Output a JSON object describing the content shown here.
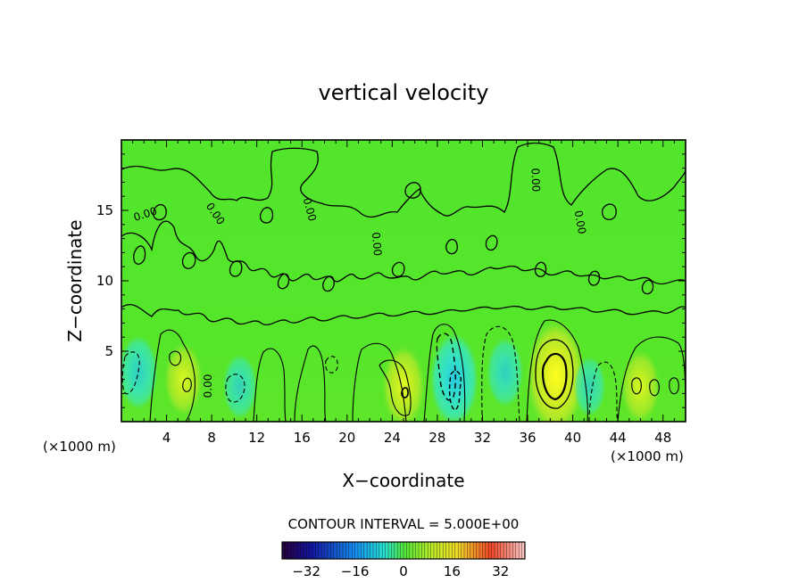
{
  "chart_data": {
    "type": "heatmap",
    "title": "vertical velocity",
    "xlabel": "X−coordinate",
    "ylabel": "Z−coordinate",
    "x_unit_label": "(×1000 m)",
    "z_unit_label": "(×1000 m)",
    "xlim": [
      0,
      50
    ],
    "ylim": [
      0,
      20
    ],
    "x_ticks": [
      4,
      8,
      12,
      16,
      20,
      24,
      28,
      32,
      36,
      40,
      44,
      48
    ],
    "x_tick_labels": [
      "4",
      "8",
      "12",
      "16",
      "20",
      "24",
      "28",
      "32",
      "36",
      "40",
      "44",
      "48"
    ],
    "y_ticks": [
      5,
      10,
      15
    ],
    "y_tick_labels": [
      "5",
      "10",
      "15"
    ],
    "contour_interval_text": "CONTOUR INTERVAL = 5.000E+00",
    "contour_labels": [
      "0.00",
      "0.00",
      "0.00",
      "0.00",
      "0.00",
      "0.00"
    ],
    "colorbar": {
      "range": [
        -40,
        40
      ],
      "ticks": [
        -32,
        -16,
        0,
        16,
        32
      ],
      "tick_labels": [
        "−32",
        "−16",
        "0",
        "16",
        "32"
      ]
    },
    "features": [
      {
        "x": 38.5,
        "z": 3.2,
        "value": 15,
        "sign": "updraft"
      },
      {
        "x": 29.5,
        "z": 3.0,
        "value": -10,
        "sign": "downdraft"
      },
      {
        "x": 5.5,
        "z": 3.0,
        "value": 6,
        "sign": "updraft"
      },
      {
        "x": 25.0,
        "z": 2.5,
        "value": 8,
        "sign": "updraft"
      },
      {
        "x": 46.0,
        "z": 2.5,
        "value": 6,
        "sign": "updraft"
      },
      {
        "x": 1.5,
        "z": 3.5,
        "value": -6,
        "sign": "downdraft"
      },
      {
        "x": 10.5,
        "z": 2.5,
        "value": -4,
        "sign": "downdraft"
      },
      {
        "x": 34.0,
        "z": 3.5,
        "value": -5,
        "sign": "downdraft"
      },
      {
        "x": 41.5,
        "z": 2.5,
        "value": -3,
        "sign": "downdraft"
      }
    ]
  }
}
